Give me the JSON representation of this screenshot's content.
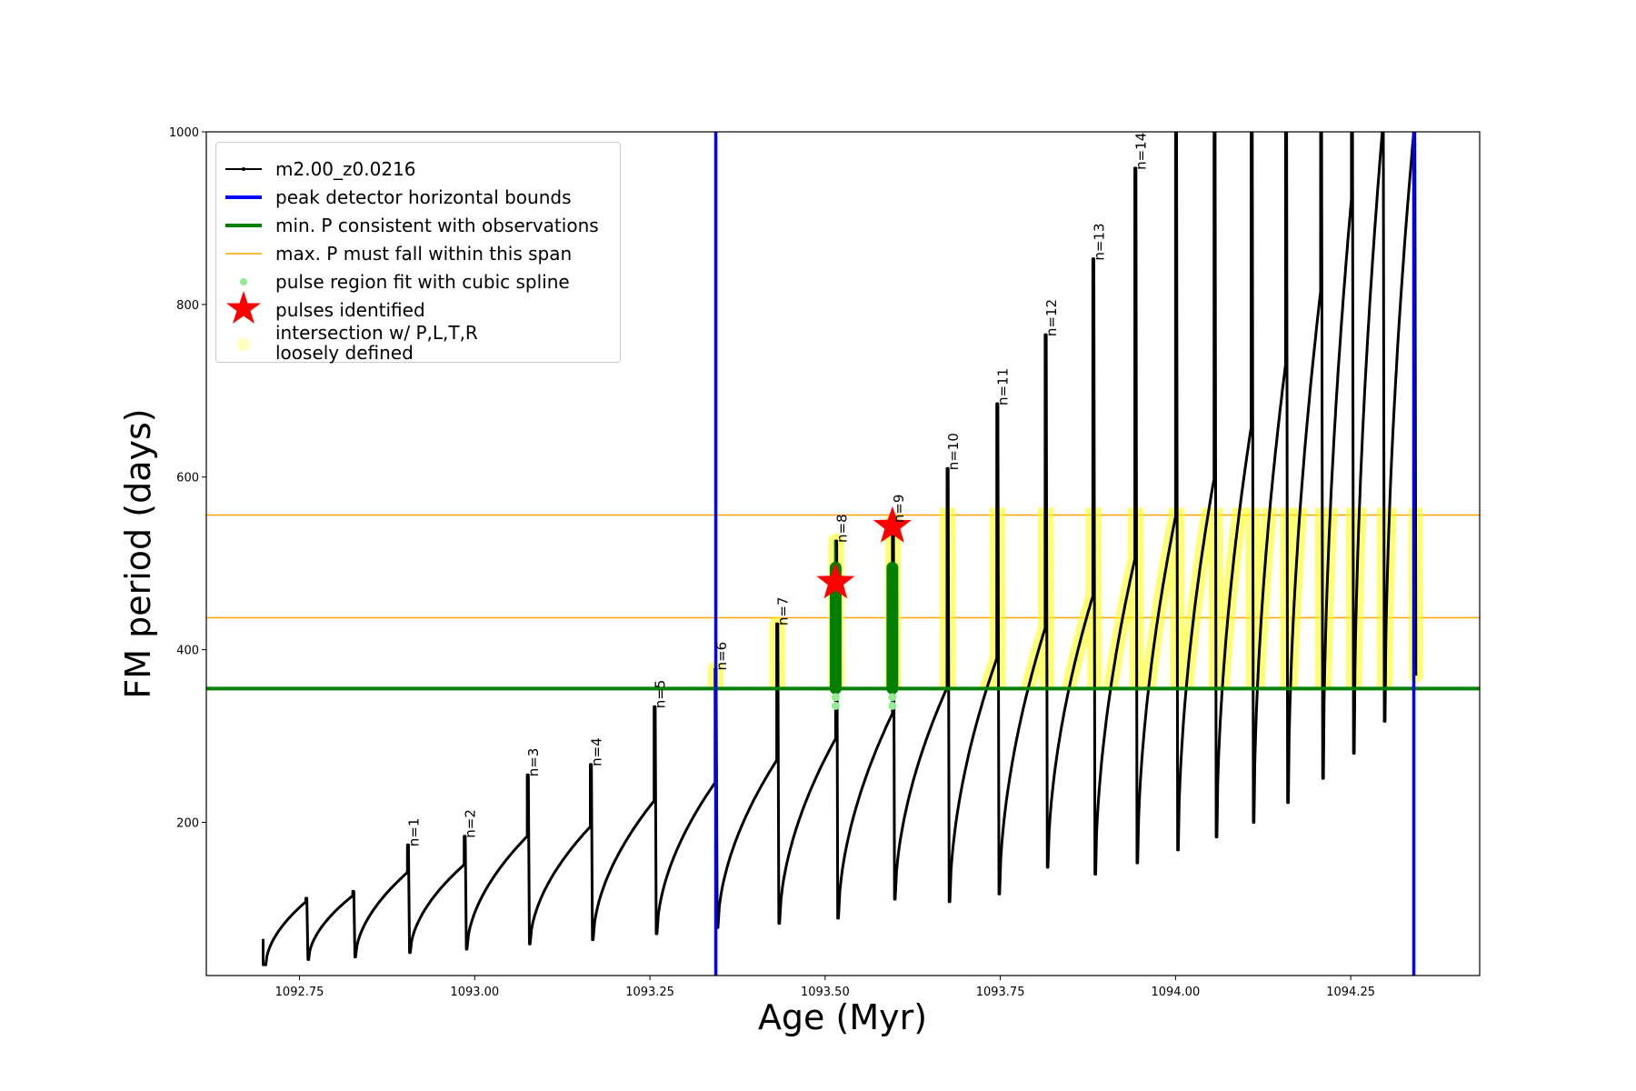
{
  "chart_data": {
    "type": "line",
    "xlabel": "Age (Myr)",
    "ylabel": "FM period (days)",
    "xlim": [
      1092.617,
      1094.434
    ],
    "ylim": [
      22.5,
      1000
    ],
    "xticks": [
      "1092.75",
      "1093.00",
      "1093.25",
      "1093.50",
      "1093.75",
      "1094.00",
      "1094.25"
    ],
    "xtick_values": [
      1092.75,
      1093.0,
      1093.25,
      1093.5,
      1093.75,
      1094.0,
      1094.25
    ],
    "yticks": [
      "200",
      "400",
      "600",
      "800",
      "1000"
    ],
    "ytick_values": [
      200,
      400,
      600,
      800,
      1000
    ],
    "grid": false,
    "legend_placement": "upper-left",
    "series": [
      {
        "name": "m2.00_z0.0216",
        "color": "#000000",
        "start": {
          "age": 1092.698,
          "period": 35
        },
        "pulses": [
          {
            "age": 1092.759,
            "pre_peak": 108,
            "spike_max": 112,
            "post_min": 41,
            "label": ""
          },
          {
            "age": 1092.826,
            "pre_peak": 115,
            "spike_max": 120,
            "post_min": 44,
            "label": ""
          },
          {
            "age": 1092.904,
            "pre_peak": 142,
            "spike_max": 174,
            "post_min": 49,
            "label": "n=1"
          },
          {
            "age": 1092.985,
            "pre_peak": 151,
            "spike_max": 184,
            "post_min": 53,
            "label": "n=2"
          },
          {
            "age": 1093.075,
            "pre_peak": 184,
            "spike_max": 255,
            "post_min": 59,
            "label": "n=3"
          },
          {
            "age": 1093.165,
            "pre_peak": 195,
            "spike_max": 267,
            "post_min": 64,
            "label": "n=4"
          },
          {
            "age": 1093.256,
            "pre_peak": 225,
            "spike_max": 334,
            "post_min": 71,
            "label": "n=5"
          },
          {
            "age": 1093.343,
            "pre_peak": 246,
            "spike_max": 378,
            "post_min": 78,
            "label": "n=6"
          },
          {
            "age": 1093.431,
            "pre_peak": 272,
            "spike_max": 430,
            "post_min": 83,
            "label": "n=7"
          },
          {
            "age": 1093.515,
            "pre_peak": 297,
            "spike_max": 526,
            "post_min": 89,
            "label": "n=8"
          },
          {
            "age": 1093.596,
            "pre_peak": 326,
            "spike_max": 549,
            "post_min": 111,
            "label": "n=9"
          },
          {
            "age": 1093.674,
            "pre_peak": 356,
            "spike_max": 610,
            "post_min": 108,
            "label": "n=10"
          },
          {
            "age": 1093.745,
            "pre_peak": 390,
            "spike_max": 685,
            "post_min": 117,
            "label": "n=11"
          },
          {
            "age": 1093.814,
            "pre_peak": 425,
            "spike_max": 765,
            "post_min": 148,
            "label": "n=12"
          },
          {
            "age": 1093.882,
            "pre_peak": 462,
            "spike_max": 853,
            "post_min": 140,
            "label": "n=13"
          },
          {
            "age": 1093.942,
            "pre_peak": 505,
            "spike_max": 958,
            "post_min": 153,
            "label": "n=14"
          },
          {
            "age": 1094.0,
            "pre_peak": 554,
            "spike_max": 1000,
            "post_min": 168,
            "label": ""
          },
          {
            "age": 1094.055,
            "pre_peak": 598,
            "spike_max": 1000,
            "post_min": 183,
            "label": ""
          },
          {
            "age": 1094.108,
            "pre_peak": 658,
            "spike_max": 1000,
            "post_min": 200,
            "label": ""
          },
          {
            "age": 1094.157,
            "pre_peak": 730,
            "spike_max": 1000,
            "post_min": 223,
            "label": ""
          },
          {
            "age": 1094.207,
            "pre_peak": 815,
            "spike_max": 1000,
            "post_min": 251,
            "label": ""
          },
          {
            "age": 1094.251,
            "pre_peak": 922,
            "spike_max": 1000,
            "post_min": 280,
            "label": ""
          },
          {
            "age": 1094.295,
            "pre_peak": 1000,
            "spike_max": 1000,
            "post_min": 317,
            "label": ""
          },
          {
            "age": 1094.34,
            "pre_peak": 1000,
            "spike_max": 1000,
            "post_min": 370,
            "label": ""
          }
        ]
      }
    ],
    "vertical_lines": {
      "name": "peak detector horizontal bounds",
      "color": "#0000ff",
      "x": [
        1093.344,
        1094.34
      ]
    },
    "min_period_line": {
      "name": "min. P consistent with observations",
      "color": "#008000",
      "y": 355
    },
    "max_period_span": {
      "name": "max. P must fall within this span",
      "color": "#ffa500",
      "y": [
        437,
        556
      ]
    },
    "spline_fit": {
      "name": "pulse region fit with cubic spline",
      "color": "#008000",
      "marker_color": "#90ee90",
      "pulses": [
        "n=8",
        "n=9"
      ]
    },
    "pulses_identified": {
      "name": "pulses identified",
      "color": "#ff0000",
      "points": [
        {
          "age": 1093.515,
          "period": 478
        },
        {
          "age": 1093.596,
          "period": 543
        }
      ]
    },
    "intersection": {
      "name": "intersection w/ P,L,T,R\nloosely defined",
      "color": "#ffff00",
      "from_age": 1093.33
    }
  },
  "legend": {
    "entries": [
      "m2.00_z0.0216",
      "peak detector horizontal bounds",
      "min. P consistent with observations",
      "max. P must fall within this span",
      "pulse region fit with cubic spline",
      "pulses identified",
      "intersection w/ P,L,T,R",
      "loosely defined"
    ]
  }
}
